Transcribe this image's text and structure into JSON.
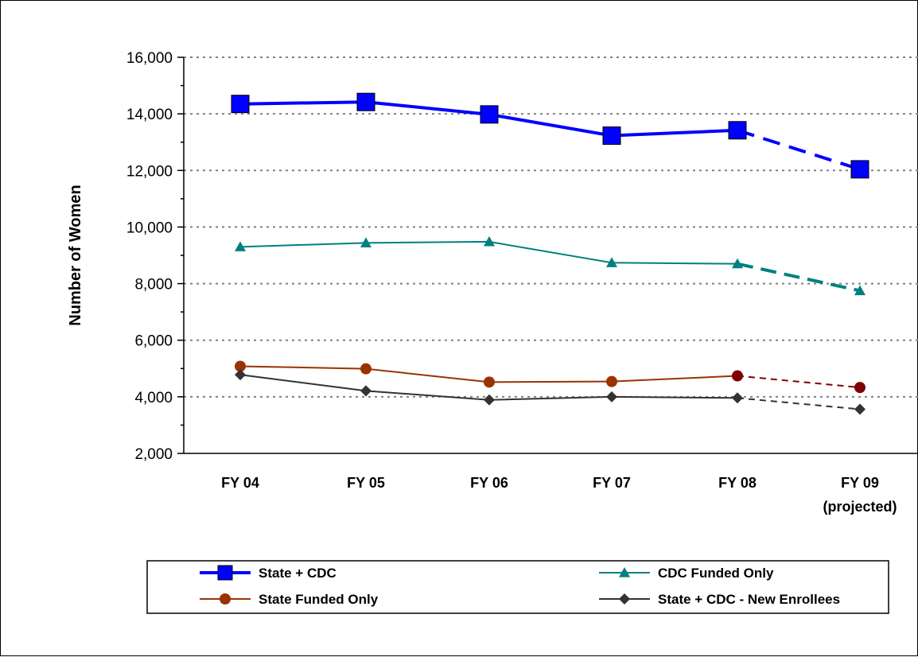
{
  "chart_data": {
    "type": "line",
    "ylabel": "Number of Women",
    "xlabel": "",
    "ylim": [
      2000,
      16000
    ],
    "yticks": [
      2000,
      4000,
      6000,
      8000,
      10000,
      12000,
      14000,
      16000
    ],
    "ytick_labels": [
      "2,000",
      "4,000",
      "6,000",
      "8,000",
      "10,000",
      "12,000",
      "14,000",
      "16,000"
    ],
    "categories": [
      "FY 04",
      "FY 05",
      "FY 06",
      "FY 07",
      "FY 08",
      "FY 09"
    ],
    "category_sublabels": [
      "",
      "",
      "",
      "",
      "",
      "(projected)"
    ],
    "grid": "horizontal dotted",
    "legend_placement": "bottom",
    "projected_from_index": 4,
    "series": [
      {
        "name": "State + CDC",
        "values": [
          14350,
          14420,
          13980,
          13230,
          13420,
          12040
        ],
        "color": "#0000ff",
        "marker": "square"
      },
      {
        "name": "CDC Funded Only",
        "values": [
          9300,
          9440,
          9480,
          8740,
          8700,
          7750
        ],
        "color": "#008080",
        "marker": "triangle"
      },
      {
        "name": "State Funded Only",
        "values": [
          5080,
          4990,
          4520,
          4540,
          4740,
          4330
        ],
        "color": "#993300",
        "marker": "circle"
      },
      {
        "name": "State + CDC - New Enrollees",
        "values": [
          4780,
          4210,
          3890,
          4000,
          3960,
          3560
        ],
        "color": "#333333",
        "marker": "diamond"
      }
    ]
  }
}
